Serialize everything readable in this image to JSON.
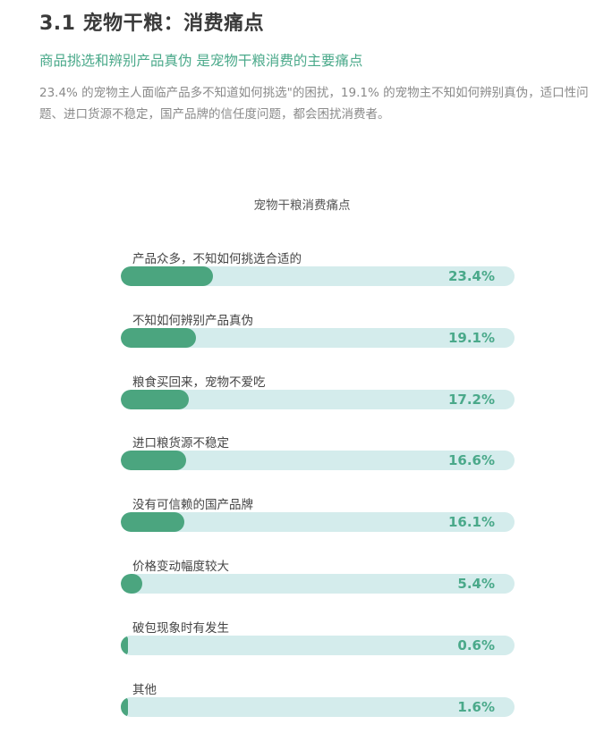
{
  "page": {
    "title": "3.1 宠物干粮：消费痛点",
    "subtitle": "商品挑选和辨别产品真伪 是宠物干粮消费的主要痛点",
    "body": "23.4% 的宠物主人面临产品多不知道如何挑选\"的困扰，19.1% 的宠物主不知如何辨别真伪，适口性问题、进口货源不稳定，国产品牌的信任度问题，都会困扰消费者。"
  },
  "chart_data": {
    "type": "bar",
    "orientation": "horizontal",
    "title": "宠物干粮消费痛点",
    "categories": [
      "产品众多，不知如何挑选合适的",
      "不知如何辨别产品真伪",
      "粮食买回来，宠物不爱吃",
      "进口粮货源不稳定",
      "没有可信赖的国产品牌",
      "价格变动幅度较大",
      "破包现象时有发生",
      "其他"
    ],
    "values": [
      23.4,
      19.1,
      17.2,
      16.6,
      16.1,
      5.4,
      0.6,
      1.6
    ],
    "labels": [
      "23.4%",
      "19.1%",
      "17.2%",
      "16.6%",
      "16.1%",
      "5.4%",
      "0.6%",
      "1.6%"
    ],
    "xlim": [
      0,
      100
    ],
    "unit": "%",
    "grid": false,
    "colors": {
      "fill": "#4ba57f",
      "track": "#d4ecec",
      "value_text": "#4aa98a"
    }
  }
}
